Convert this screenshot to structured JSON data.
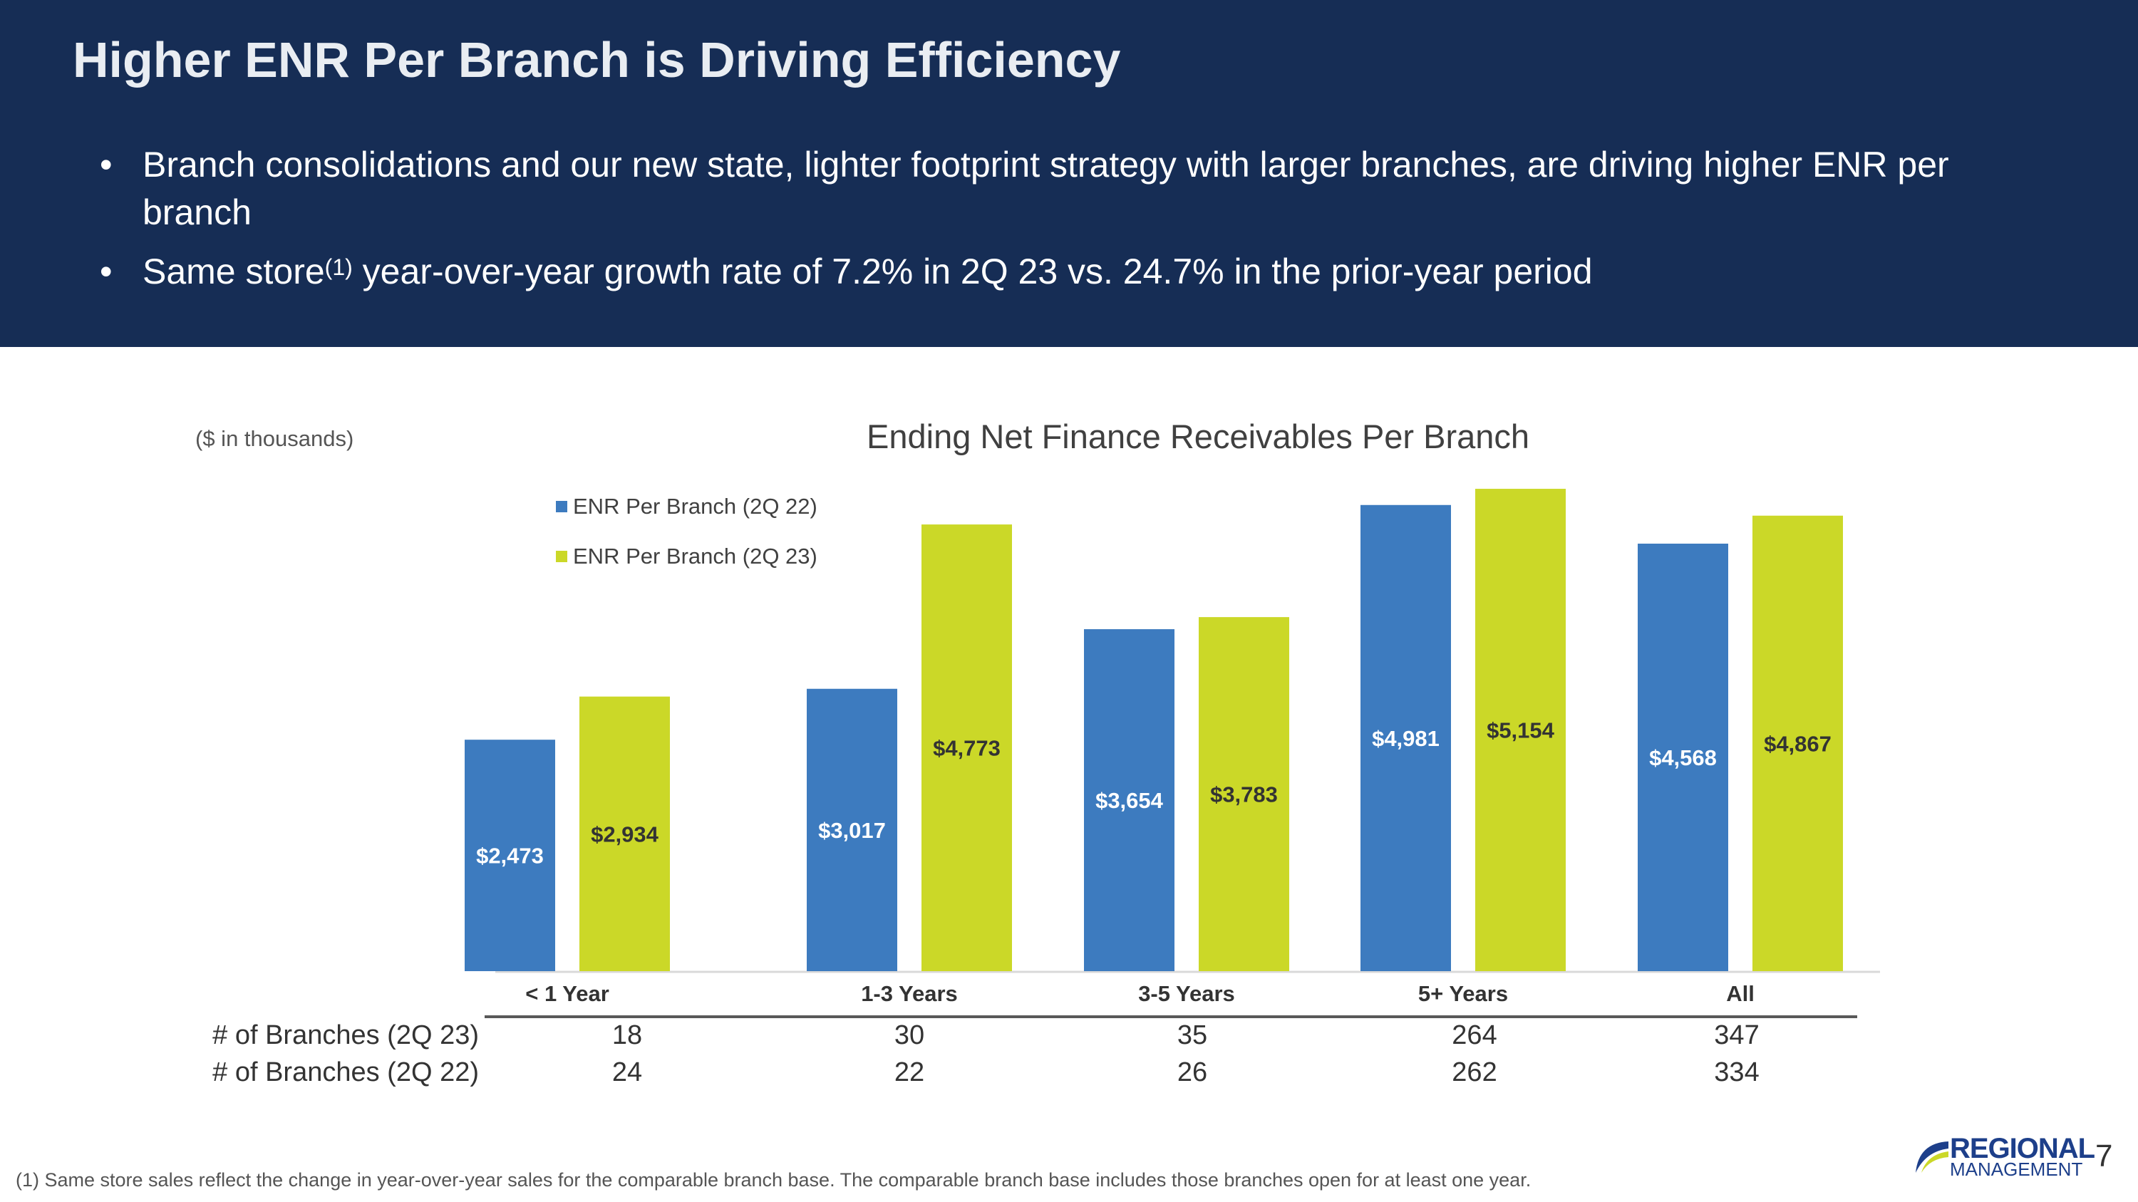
{
  "header": {
    "title": "Higher ENR Per Branch is Driving Efficiency",
    "bullet1": "Branch consolidations and our new state, lighter footprint strategy with larger branches, are driving higher ENR per branch",
    "bullet2_pre": "Same store",
    "bullet2_sup": "(1)",
    "bullet2_post": " year-over-year growth rate of 7.2% in 2Q 23 vs. 24.7% in the prior-year period",
    "bullet_glyph": "•"
  },
  "units_note": "($ in thousands)",
  "chart_data": {
    "type": "bar",
    "title": "Ending Net Finance Receivables Per Branch",
    "categories": [
      "< 1 Year",
      "1-3 Years",
      "3-5 Years",
      "5+ Years",
      "All"
    ],
    "series": [
      {
        "name": "ENR Per Branch (2Q 22)",
        "color": "#3d7bbf",
        "values": [
          2473,
          3017,
          3654,
          4981,
          4568
        ],
        "labels": [
          "$2,473",
          "$3,017",
          "$3,654",
          "$4,981",
          "$4,568"
        ]
      },
      {
        "name": "ENR Per Branch (2Q 23)",
        "color": "#cbd828",
        "values": [
          2934,
          4773,
          3783,
          5154,
          4867
        ],
        "labels": [
          "$2,934",
          "$4,773",
          "$3,783",
          "$5,154",
          "$4,867"
        ]
      }
    ],
    "ylim": [
      0,
      5200
    ],
    "legend": "top-left",
    "grid": false
  },
  "branch_table": {
    "rows": [
      {
        "label": "# of Branches (2Q 23)",
        "values": [
          "18",
          "30",
          "35",
          "264",
          "347"
        ]
      },
      {
        "label": "# of Branches (2Q 22)",
        "values": [
          "24",
          "22",
          "26",
          "262",
          "334"
        ]
      }
    ]
  },
  "footnote": "(1)  Same store sales reflect the change in year-over-year sales for the comparable branch base. The comparable branch base includes those branches open for at least one year.",
  "logo": {
    "line1": "REGIONAL",
    "line2": "MANAGEMENT"
  },
  "page_number": "7"
}
